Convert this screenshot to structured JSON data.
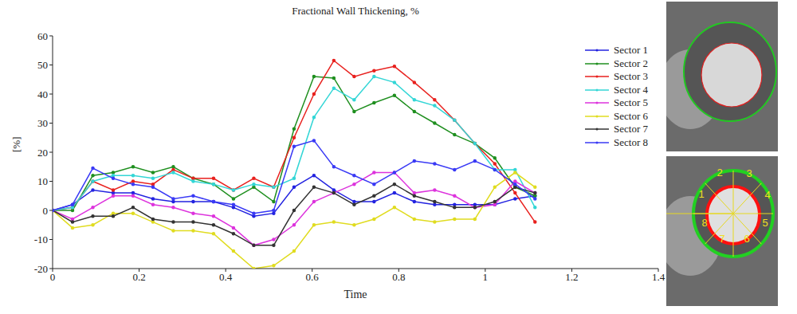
{
  "chart_data": {
    "type": "line",
    "title": "Fractional Wall Thickening, %",
    "x_label": "Time",
    "y_label": "[%]",
    "x": [
      0,
      0.046,
      0.093,
      0.14,
      0.186,
      0.232,
      0.279,
      0.325,
      0.372,
      0.418,
      0.465,
      0.511,
      0.558,
      0.604,
      0.65,
      0.697,
      0.743,
      0.79,
      0.836,
      0.883,
      0.929,
      0.976,
      1.022,
      1.069,
      1.115
    ],
    "series": [
      {
        "name": "Sector 1",
        "color": "#2323e0",
        "values": [
          0,
          2,
          7,
          6,
          6,
          4,
          3,
          3,
          3,
          1,
          -2,
          -1,
          8,
          12,
          7,
          3,
          3,
          6,
          3,
          2,
          2,
          2,
          2,
          4,
          5
        ]
      },
      {
        "name": "Sector 2",
        "color": "#1f8f1f",
        "values": [
          0,
          0,
          12,
          13,
          15,
          13,
          15,
          11,
          9,
          4,
          8,
          3,
          28,
          46,
          45.5,
          34,
          37,
          39.5,
          34,
          30,
          26,
          23,
          18,
          8,
          5
        ]
      },
      {
        "name": "Sector 3",
        "color": "#e8211e",
        "values": [
          0,
          1,
          10,
          7,
          10,
          9,
          14,
          11,
          11,
          7,
          11,
          8,
          25,
          40,
          51.5,
          46,
          48,
          49.5,
          44,
          38,
          31,
          23,
          16,
          6,
          -4
        ]
      },
      {
        "name": "Sector 4",
        "color": "#33d6d6",
        "values": [
          0,
          1,
          10,
          12,
          12,
          11,
          13,
          10,
          9,
          7,
          9,
          8,
          11,
          32,
          42,
          38,
          46,
          44,
          38,
          36,
          31,
          23,
          14,
          14,
          1
        ]
      },
      {
        "name": "Sector 5",
        "color": "#dd33dd",
        "values": [
          0,
          -3,
          1,
          5,
          5,
          2,
          1,
          -1,
          -2,
          -6,
          -12,
          -10,
          -5,
          3,
          6,
          9,
          13,
          13,
          6,
          7,
          5,
          1,
          2,
          10,
          6
        ]
      },
      {
        "name": "Sector 6",
        "color": "#e0dc20",
        "values": [
          0,
          -6,
          -5,
          -1,
          -1,
          -4,
          -7,
          -7,
          -8,
          -14,
          -20,
          -19,
          -14,
          -5,
          -4,
          -5,
          -3,
          1,
          -3,
          -4,
          -3,
          -3,
          8,
          13,
          8
        ]
      },
      {
        "name": "Sector 7",
        "color": "#333333",
        "values": [
          0,
          -4,
          -2,
          -2,
          1,
          -3,
          -4,
          -4,
          -5,
          -8,
          -12,
          -12,
          0,
          8,
          6,
          2,
          5,
          9,
          5,
          3,
          1,
          1,
          3,
          8,
          6
        ]
      },
      {
        "name": "Sector 8",
        "color": "#3a3af5",
        "values": [
          0,
          2,
          14.5,
          11,
          9,
          8,
          4,
          5,
          3,
          2,
          -1,
          0,
          22,
          24,
          15,
          12,
          9,
          13,
          17,
          16,
          14,
          17,
          14,
          9,
          4
        ]
      }
    ],
    "xlim": [
      0,
      1.4
    ],
    "xticks": [
      0,
      0.2,
      0.4,
      0.6,
      0.8,
      1,
      1.2,
      1.4
    ],
    "ylim": [
      -20,
      60
    ],
    "yticks": [
      -20,
      -10,
      0,
      10,
      20,
      30,
      40,
      50,
      60
    ],
    "grid": false,
    "legend": "upper right",
    "marker": "dot",
    "annotations": [
      "1",
      "2",
      "3",
      "4",
      "5",
      "6",
      "7",
      "8"
    ]
  }
}
